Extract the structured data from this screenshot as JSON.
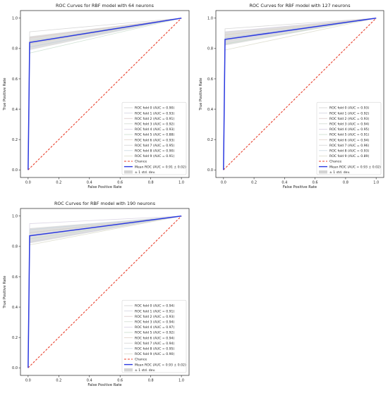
{
  "chart_data": [
    {
      "type": "line",
      "title": "ROC Curves for RBF model with 64 neurons",
      "xlabel": "False Positive Rate",
      "ylabel": "True Positive Rate",
      "xlim": [
        -0.05,
        1.05
      ],
      "ylim": [
        -0.05,
        1.05
      ],
      "ticks": [
        "0.0",
        "0.2",
        "0.4",
        "0.6",
        "0.8",
        "1.0"
      ],
      "tick_values": [
        0,
        0.2,
        0.4,
        0.6,
        0.8,
        1.0
      ],
      "grid": false,
      "legend_position": "lower-right",
      "series": [
        {
          "name": "ROC fold 0 (AUC = 0.90)",
          "x": [
            0,
            0.01,
            1
          ],
          "y": [
            0,
            0.81,
            1
          ],
          "color": "#999999",
          "style": "thin"
        },
        {
          "name": "ROC fold 1 (AUC = 0.93)",
          "x": [
            0,
            0.01,
            1
          ],
          "y": [
            0,
            0.87,
            1
          ],
          "color": "#999999",
          "style": "thin"
        },
        {
          "name": "ROC fold 2 (AUC = 0.91)",
          "x": [
            0,
            0.01,
            1
          ],
          "y": [
            0,
            0.83,
            1
          ],
          "color": "#999999",
          "style": "thin"
        },
        {
          "name": "ROC fold 3 (AUC = 0.92)",
          "x": [
            0,
            0.01,
            1
          ],
          "y": [
            0,
            0.85,
            1
          ],
          "color": "#999999",
          "style": "thin"
        },
        {
          "name": "ROC fold 4 (AUC = 0.93)",
          "x": [
            0,
            0.01,
            1
          ],
          "y": [
            0,
            0.87,
            1
          ],
          "color": "#999999",
          "style": "thin"
        },
        {
          "name": "ROC fold 5 (AUC = 0.88)",
          "x": [
            0,
            0.01,
            1
          ],
          "y": [
            0,
            0.77,
            1
          ],
          "color": "#999999",
          "style": "thin"
        },
        {
          "name": "ROC fold 6 (AUC = 0.93)",
          "x": [
            0,
            0.01,
            1
          ],
          "y": [
            0,
            0.87,
            1
          ],
          "color": "#999999",
          "style": "thin"
        },
        {
          "name": "ROC fold 7 (AUC = 0.95)",
          "x": [
            0,
            0.01,
            1
          ],
          "y": [
            0,
            0.91,
            1
          ],
          "color": "#999999",
          "style": "thin"
        },
        {
          "name": "ROC fold 8 (AUC = 0.90)",
          "x": [
            0,
            0.01,
            1
          ],
          "y": [
            0,
            0.81,
            1
          ],
          "color": "#999999",
          "style": "thin"
        },
        {
          "name": "ROC fold 9 (AUC = 0.91)",
          "x": [
            0,
            0.01,
            1
          ],
          "y": [
            0,
            0.83,
            1
          ],
          "color": "#999999",
          "style": "thin"
        },
        {
          "name": "Chance",
          "x": [
            0,
            1
          ],
          "y": [
            0,
            1
          ],
          "color": "#e8412e",
          "style": "dashed"
        },
        {
          "name": "Mean ROC (AUC = 0.91 ± 0.02)",
          "x": [
            0,
            0.01,
            1
          ],
          "y": [
            0,
            0.84,
            1
          ],
          "color": "#2b39e0",
          "style": "mean"
        }
      ],
      "band": {
        "name": "± 1 std. dev.",
        "x": [
          0.01,
          1
        ],
        "upper": [
          0.88,
          1
        ],
        "lower": [
          0.79,
          1
        ],
        "color": "#b8b8b8"
      }
    },
    {
      "type": "line",
      "title": "ROC Curves for RBF model with 127 neurons",
      "xlabel": "False Positive Rate",
      "ylabel": "True Positive Rate",
      "xlim": [
        -0.05,
        1.05
      ],
      "ylim": [
        -0.05,
        1.05
      ],
      "ticks": [
        "0.0",
        "0.2",
        "0.4",
        "0.6",
        "0.8",
        "1.0"
      ],
      "tick_values": [
        0,
        0.2,
        0.4,
        0.6,
        0.8,
        1.0
      ],
      "grid": false,
      "legend_position": "lower-right",
      "series": [
        {
          "name": "ROC fold 0 (AUC = 0.93)",
          "x": [
            0,
            0.01,
            1
          ],
          "y": [
            0,
            0.87,
            1
          ],
          "color": "#999999",
          "style": "thin"
        },
        {
          "name": "ROC fold 1 (AUC = 0.92)",
          "x": [
            0,
            0.01,
            1
          ],
          "y": [
            0,
            0.85,
            1
          ],
          "color": "#999999",
          "style": "thin"
        },
        {
          "name": "ROC fold 2 (AUC = 0.93)",
          "x": [
            0,
            0.01,
            1
          ],
          "y": [
            0,
            0.87,
            1
          ],
          "color": "#999999",
          "style": "thin"
        },
        {
          "name": "ROC fold 3 (AUC = 0.94)",
          "x": [
            0,
            0.01,
            1
          ],
          "y": [
            0,
            0.89,
            1
          ],
          "color": "#999999",
          "style": "thin"
        },
        {
          "name": "ROC fold 4 (AUC = 0.95)",
          "x": [
            0,
            0.01,
            1
          ],
          "y": [
            0,
            0.91,
            1
          ],
          "color": "#999999",
          "style": "thin"
        },
        {
          "name": "ROC fold 5 (AUC = 0.91)",
          "x": [
            0,
            0.01,
            1
          ],
          "y": [
            0,
            0.83,
            1
          ],
          "color": "#999999",
          "style": "thin"
        },
        {
          "name": "ROC fold 6 (AUC = 0.94)",
          "x": [
            0,
            0.01,
            1
          ],
          "y": [
            0,
            0.89,
            1
          ],
          "color": "#999999",
          "style": "thin"
        },
        {
          "name": "ROC fold 7 (AUC = 0.96)",
          "x": [
            0,
            0.01,
            1
          ],
          "y": [
            0,
            0.93,
            1
          ],
          "color": "#999999",
          "style": "thin"
        },
        {
          "name": "ROC fold 8 (AUC = 0.93)",
          "x": [
            0,
            0.01,
            1
          ],
          "y": [
            0,
            0.87,
            1
          ],
          "color": "#999999",
          "style": "thin"
        },
        {
          "name": "ROC fold 9 (AUC = 0.89)",
          "x": [
            0,
            0.01,
            1
          ],
          "y": [
            0,
            0.79,
            1
          ],
          "color": "#999999",
          "style": "thin"
        },
        {
          "name": "Chance",
          "x": [
            0,
            1
          ],
          "y": [
            0,
            1
          ],
          "color": "#e8412e",
          "style": "dashed"
        },
        {
          "name": "Mean ROC (AUC = 0.93 ± 0.02)",
          "x": [
            0,
            0.01,
            1
          ],
          "y": [
            0,
            0.86,
            1
          ],
          "color": "#2b39e0",
          "style": "mean"
        }
      ],
      "band": {
        "name": "± 1 std. dev.",
        "x": [
          0.01,
          1
        ],
        "upper": [
          0.91,
          1
        ],
        "lower": [
          0.82,
          1
        ],
        "color": "#b8b8b8"
      }
    },
    {
      "type": "line",
      "title": "ROC Curves for RBF model with 190 neurons",
      "xlabel": "False Positive Rate",
      "ylabel": "True Positive Rate",
      "xlim": [
        -0.05,
        1.05
      ],
      "ylim": [
        -0.05,
        1.05
      ],
      "ticks": [
        "0.0",
        "0.2",
        "0.4",
        "0.6",
        "0.8",
        "1.0"
      ],
      "tick_values": [
        0,
        0.2,
        0.4,
        0.6,
        0.8,
        1.0
      ],
      "grid": false,
      "legend_position": "lower-right",
      "series": [
        {
          "name": "ROC fold 0 (AUC = 0.94)",
          "x": [
            0,
            0.01,
            1
          ],
          "y": [
            0,
            0.89,
            1
          ],
          "color": "#999999",
          "style": "thin"
        },
        {
          "name": "ROC fold 1 (AUC = 0.91)",
          "x": [
            0,
            0.01,
            1
          ],
          "y": [
            0,
            0.83,
            1
          ],
          "color": "#999999",
          "style": "thin"
        },
        {
          "name": "ROC fold 2 (AUC = 0.93)",
          "x": [
            0,
            0.01,
            1
          ],
          "y": [
            0,
            0.87,
            1
          ],
          "color": "#999999",
          "style": "thin"
        },
        {
          "name": "ROC fold 3 (AUC = 0.94)",
          "x": [
            0,
            0.01,
            1
          ],
          "y": [
            0,
            0.89,
            1
          ],
          "color": "#999999",
          "style": "thin"
        },
        {
          "name": "ROC fold 4 (AUC = 0.97)",
          "x": [
            0,
            0.01,
            1
          ],
          "y": [
            0,
            0.95,
            1
          ],
          "color": "#999999",
          "style": "thin"
        },
        {
          "name": "ROC fold 5 (AUC = 0.92)",
          "x": [
            0,
            0.01,
            1
          ],
          "y": [
            0,
            0.85,
            1
          ],
          "color": "#999999",
          "style": "thin"
        },
        {
          "name": "ROC fold 6 (AUC = 0.94)",
          "x": [
            0,
            0.01,
            1
          ],
          "y": [
            0,
            0.89,
            1
          ],
          "color": "#999999",
          "style": "thin"
        },
        {
          "name": "ROC fold 7 (AUC = 0.94)",
          "x": [
            0,
            0.01,
            1
          ],
          "y": [
            0,
            0.89,
            1
          ],
          "color": "#999999",
          "style": "thin"
        },
        {
          "name": "ROC fold 8 (AUC = 0.95)",
          "x": [
            0,
            0.01,
            1
          ],
          "y": [
            0,
            0.91,
            1
          ],
          "color": "#999999",
          "style": "thin"
        },
        {
          "name": "ROC fold 9 (AUC = 0.90)",
          "x": [
            0,
            0.01,
            1
          ],
          "y": [
            0,
            0.81,
            1
          ],
          "color": "#999999",
          "style": "thin"
        },
        {
          "name": "Chance",
          "x": [
            0,
            1
          ],
          "y": [
            0,
            1
          ],
          "color": "#e8412e",
          "style": "dashed"
        },
        {
          "name": "Mean ROC (AUC = 0.93 ± 0.02)",
          "x": [
            0,
            0.01,
            1
          ],
          "y": [
            0,
            0.87,
            1
          ],
          "color": "#2b39e0",
          "style": "mean"
        }
      ],
      "band": {
        "name": "± 1 std. dev.",
        "x": [
          0.01,
          1
        ],
        "upper": [
          0.92,
          1
        ],
        "lower": [
          0.82,
          1
        ],
        "color": "#b8b8b8"
      }
    }
  ]
}
